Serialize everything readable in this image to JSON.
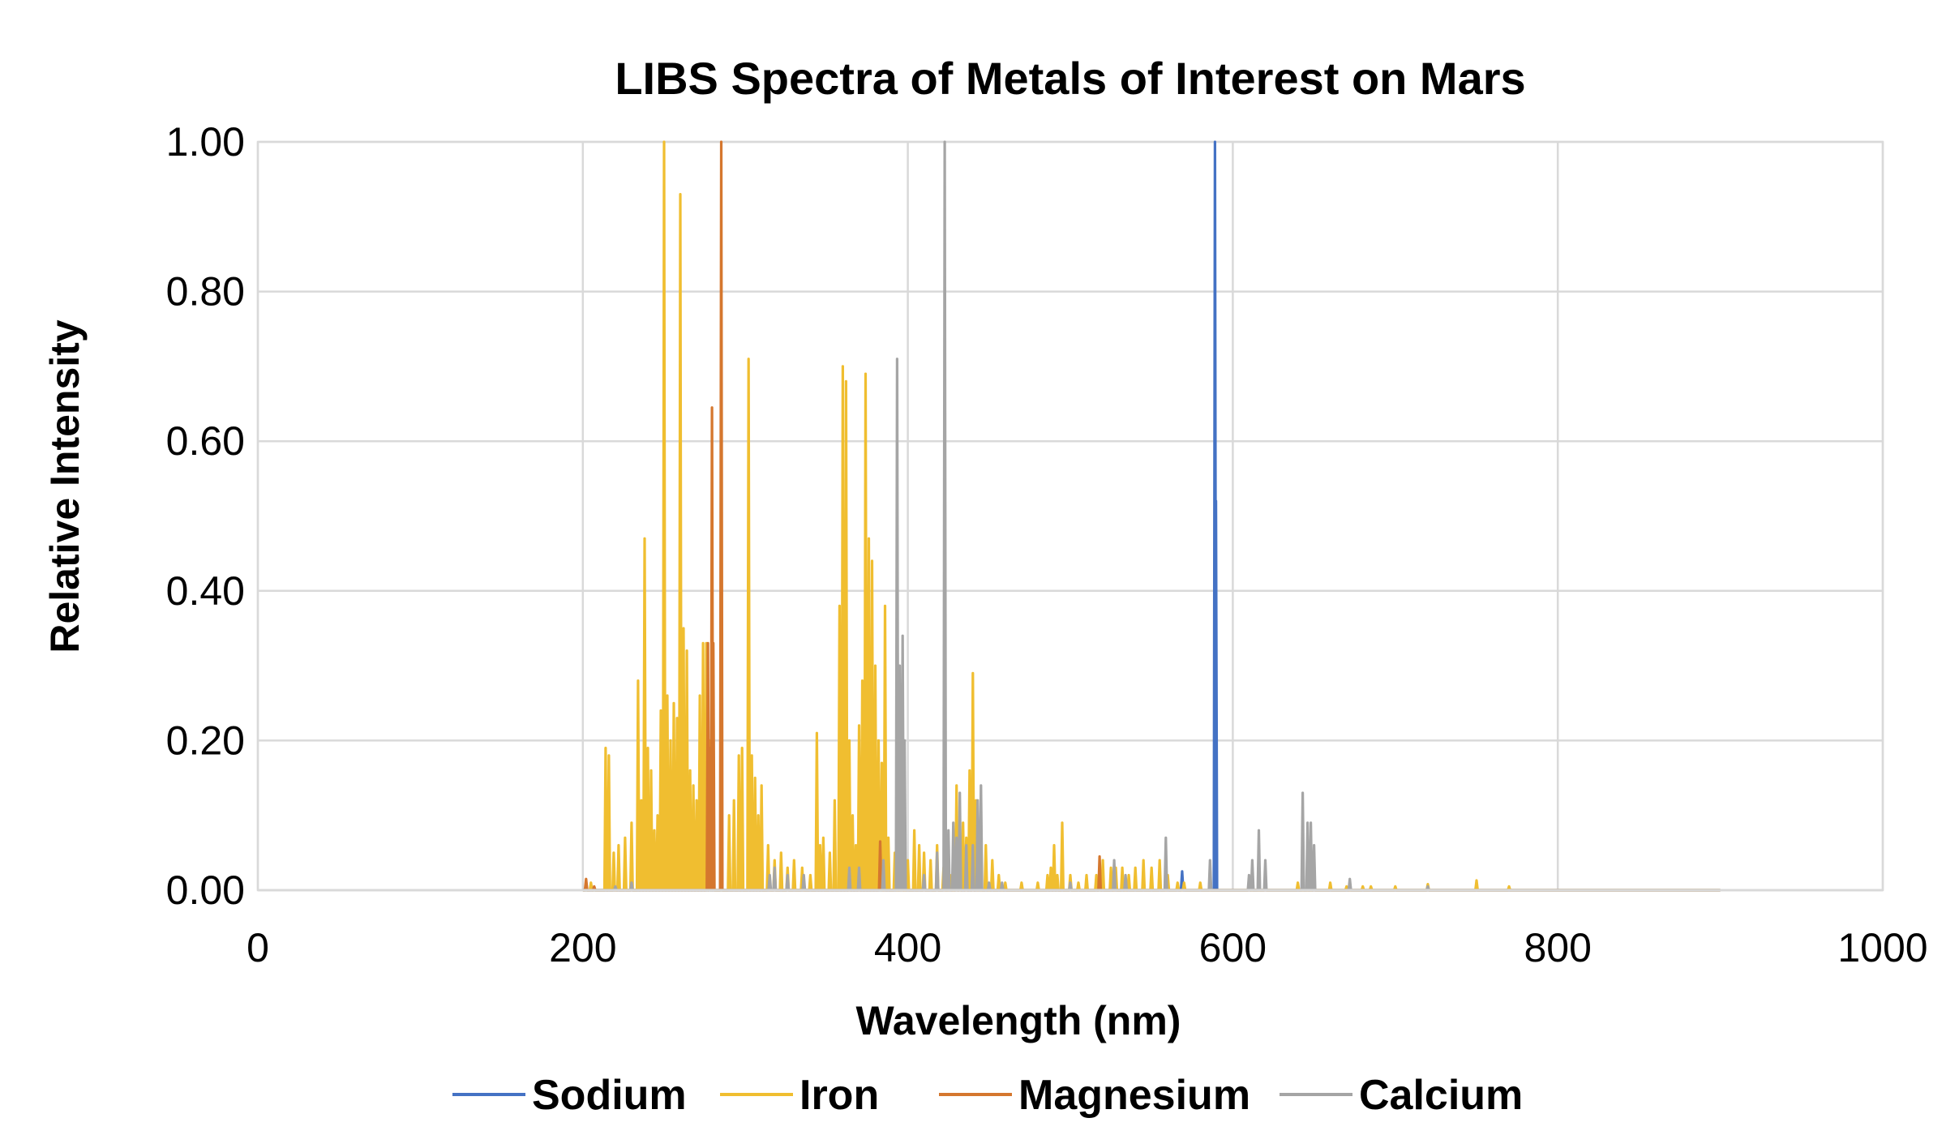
{
  "chart_data": {
    "type": "line",
    "title": "LIBS Spectra of Metals of Interest on Mars",
    "xlabel": "Wavelength (nm)",
    "ylabel": "Relative Intensity",
    "xlim": [
      0,
      1000
    ],
    "ylim": [
      0,
      1
    ],
    "x_ticks": [
      0,
      200,
      400,
      600,
      800,
      1000
    ],
    "x_tick_labels": [
      "0",
      "200",
      "400",
      "600",
      "800",
      "1000"
    ],
    "y_ticks": [
      0,
      0.2,
      0.4,
      0.6,
      0.8,
      1.0
    ],
    "y_tick_labels": [
      "0.00",
      "0.20",
      "0.40",
      "0.60",
      "0.80",
      "1.00"
    ],
    "grid": true,
    "legend_position": "bottom",
    "baseline_range": [
      200,
      900
    ],
    "series": [
      {
        "name": "Sodium",
        "color": "#4472C4",
        "peaks": [
          [
            568.8,
            0.025
          ],
          [
            589.0,
            1.0
          ],
          [
            589.6,
            0.52
          ]
        ]
      },
      {
        "name": "Iron",
        "color": "#F0BE30",
        "peaks": [
          [
            205,
            0.01
          ],
          [
            214,
            0.19
          ],
          [
            216,
            0.18
          ],
          [
            219,
            0.05
          ],
          [
            222,
            0.06
          ],
          [
            226,
            0.07
          ],
          [
            230,
            0.09
          ],
          [
            234,
            0.28
          ],
          [
            236,
            0.12
          ],
          [
            238,
            0.47
          ],
          [
            240,
            0.19
          ],
          [
            242,
            0.16
          ],
          [
            244,
            0.08
          ],
          [
            246,
            0.1
          ],
          [
            248,
            0.24
          ],
          [
            250,
            1.0
          ],
          [
            252,
            0.26
          ],
          [
            254,
            0.2
          ],
          [
            256,
            0.25
          ],
          [
            258,
            0.23
          ],
          [
            260,
            0.93
          ],
          [
            262,
            0.35
          ],
          [
            264,
            0.32
          ],
          [
            266,
            0.16
          ],
          [
            268,
            0.14
          ],
          [
            270,
            0.12
          ],
          [
            272,
            0.26
          ],
          [
            274,
            0.33
          ],
          [
            276,
            0.33
          ],
          [
            278,
            0.2
          ],
          [
            280,
            0.08
          ],
          [
            290,
            0.1
          ],
          [
            293,
            0.12
          ],
          [
            296,
            0.18
          ],
          [
            298,
            0.19
          ],
          [
            302,
            0.71
          ],
          [
            304,
            0.18
          ],
          [
            306,
            0.15
          ],
          [
            308,
            0.1
          ],
          [
            310,
            0.14
          ],
          [
            314,
            0.06
          ],
          [
            318,
            0.04
          ],
          [
            322,
            0.05
          ],
          [
            326,
            0.03
          ],
          [
            330,
            0.04
          ],
          [
            335,
            0.03
          ],
          [
            340,
            0.02
          ],
          [
            344,
            0.21
          ],
          [
            346,
            0.06
          ],
          [
            348,
            0.07
          ],
          [
            352,
            0.05
          ],
          [
            355,
            0.12
          ],
          [
            358,
            0.38
          ],
          [
            360,
            0.7
          ],
          [
            362,
            0.68
          ],
          [
            364,
            0.2
          ],
          [
            366,
            0.1
          ],
          [
            368,
            0.06
          ],
          [
            370,
            0.22
          ],
          [
            372,
            0.28
          ],
          [
            374,
            0.69
          ],
          [
            376,
            0.47
          ],
          [
            378,
            0.44
          ],
          [
            380,
            0.3
          ],
          [
            382,
            0.2
          ],
          [
            384,
            0.17
          ],
          [
            386,
            0.38
          ],
          [
            388,
            0.07
          ],
          [
            392,
            0.05
          ],
          [
            396,
            0.03
          ],
          [
            400,
            0.04
          ],
          [
            404,
            0.08
          ],
          [
            407,
            0.06
          ],
          [
            410,
            0.05
          ],
          [
            414,
            0.04
          ],
          [
            418,
            0.06
          ],
          [
            422,
            0.03
          ],
          [
            426,
            0.02
          ],
          [
            430,
            0.14
          ],
          [
            432,
            0.1
          ],
          [
            434,
            0.09
          ],
          [
            436,
            0.07
          ],
          [
            438,
            0.16
          ],
          [
            440,
            0.29
          ],
          [
            442,
            0.12
          ],
          [
            444,
            0.08
          ],
          [
            448,
            0.06
          ],
          [
            452,
            0.04
          ],
          [
            456,
            0.02
          ],
          [
            460,
            0.01
          ],
          [
            470,
            0.01
          ],
          [
            480,
            0.01
          ],
          [
            486,
            0.02
          ],
          [
            488,
            0.03
          ],
          [
            490,
            0.06
          ],
          [
            492,
            0.02
          ],
          [
            495,
            0.09
          ],
          [
            500,
            0.02
          ],
          [
            505,
            0.01
          ],
          [
            510,
            0.02
          ],
          [
            516,
            0.02
          ],
          [
            520,
            0.04
          ],
          [
            525,
            0.03
          ],
          [
            528,
            0.03
          ],
          [
            532,
            0.03
          ],
          [
            536,
            0.02
          ],
          [
            540,
            0.03
          ],
          [
            545,
            0.04
          ],
          [
            550,
            0.03
          ],
          [
            555,
            0.04
          ],
          [
            560,
            0.02
          ],
          [
            566,
            0.01
          ],
          [
            570,
            0.01
          ],
          [
            580,
            0.01
          ],
          [
            610,
            0.01
          ],
          [
            620,
            0.01
          ],
          [
            640,
            0.01
          ],
          [
            650,
            0.01
          ],
          [
            660,
            0.01
          ],
          [
            670,
            0.005
          ],
          [
            680,
            0.005
          ],
          [
            685,
            0.005
          ],
          [
            700,
            0.005
          ],
          [
            720,
            0.008
          ],
          [
            750,
            0.013
          ],
          [
            770,
            0.005
          ]
        ]
      },
      {
        "name": "Magnesium",
        "color": "#D5772E",
        "peaks": [
          [
            202,
            0.015
          ],
          [
            207,
            0.005
          ],
          [
            277,
            0.33
          ],
          [
            278,
            0.19
          ],
          [
            279.5,
            0.645
          ],
          [
            280.3,
            0.33
          ],
          [
            285.2,
            1.0
          ],
          [
            383,
            0.065
          ],
          [
            518,
            0.045
          ]
        ]
      },
      {
        "name": "Calcium",
        "color": "#A5A5A5",
        "peaks": [
          [
            220,
            0.005
          ],
          [
            230,
            0.01
          ],
          [
            315,
            0.02
          ],
          [
            318,
            0.03
          ],
          [
            326,
            0.02
          ],
          [
            336,
            0.02
          ],
          [
            364,
            0.03
          ],
          [
            370,
            0.03
          ],
          [
            385,
            0.04
          ],
          [
            393.4,
            0.71
          ],
          [
            395,
            0.3
          ],
          [
            396.8,
            0.34
          ],
          [
            398,
            0.2
          ],
          [
            410,
            0.02
          ],
          [
            418,
            0.05
          ],
          [
            422.7,
            1.0
          ],
          [
            425,
            0.08
          ],
          [
            428,
            0.09
          ],
          [
            430,
            0.07
          ],
          [
            432,
            0.13
          ],
          [
            436,
            0.06
          ],
          [
            440,
            0.06
          ],
          [
            443,
            0.12
          ],
          [
            445,
            0.14
          ],
          [
            450,
            0.01
          ],
          [
            458,
            0.01
          ],
          [
            500,
            0.01
          ],
          [
            527,
            0.04
          ],
          [
            534,
            0.02
          ],
          [
            558.8,
            0.07
          ],
          [
            586,
            0.04
          ],
          [
            610,
            0.02
          ],
          [
            612,
            0.04
          ],
          [
            616,
            0.08
          ],
          [
            620,
            0.04
          ],
          [
            643,
            0.13
          ],
          [
            646,
            0.09
          ],
          [
            648,
            0.09
          ],
          [
            650,
            0.06
          ],
          [
            672,
            0.015
          ],
          [
            720,
            0.005
          ]
        ]
      }
    ]
  }
}
